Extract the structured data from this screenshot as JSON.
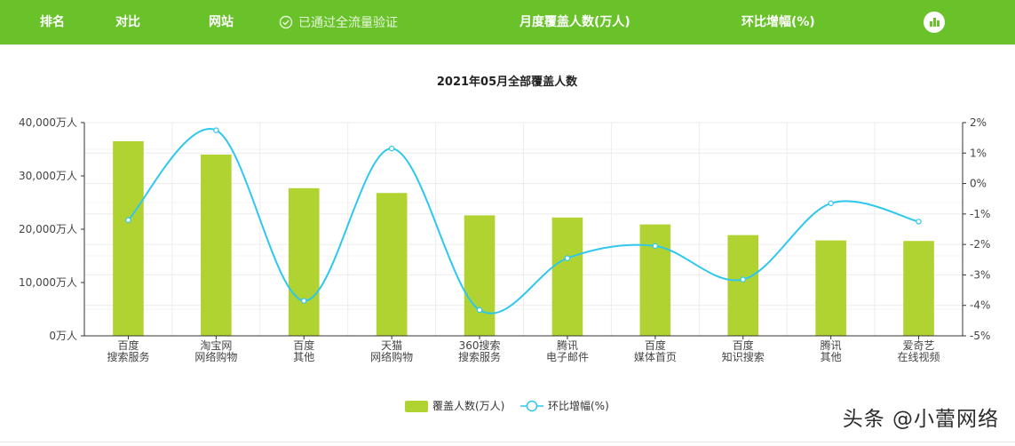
{
  "header": {
    "rank_label": "排名",
    "compare_label": "对比",
    "site_label": "网站",
    "verified_label": "已通过全流量验证",
    "coverage_label": "月度覆盖人数(万人)",
    "mom_label": "环比增幅(%)",
    "chart_toggle_icon": "bar-chart-icon"
  },
  "colors": {
    "header_bg": "#69c22a",
    "bar": "#b1d332",
    "line": "#2ec7ed"
  },
  "chart_data": {
    "type": "bar",
    "title": "2021年05月全部覆盖人数",
    "categories": [
      [
        "百度",
        "搜索服务"
      ],
      [
        "淘宝网",
        "网络购物"
      ],
      [
        "百度",
        "其他"
      ],
      [
        "天猫",
        "网络购物"
      ],
      [
        "360搜索",
        "搜索服务"
      ],
      [
        "腾讯",
        "电子邮件"
      ],
      [
        "百度",
        "媒体首页"
      ],
      [
        "百度",
        "知识搜索"
      ],
      [
        "腾讯",
        "其他"
      ],
      [
        "爱奇艺",
        "在线视频"
      ]
    ],
    "series": [
      {
        "name": "覆盖人数(万人)",
        "type": "bar",
        "axis": "left",
        "values": [
          36500,
          34000,
          27700,
          26800,
          22600,
          22200,
          20900,
          18900,
          17900,
          17800
        ]
      },
      {
        "name": "环比增幅(%)",
        "type": "line",
        "axis": "right",
        "values": [
          -1.2,
          1.75,
          -3.85,
          1.15,
          -4.15,
          -2.45,
          -2.05,
          -3.15,
          -0.65,
          -1.25
        ]
      }
    ],
    "y_left": {
      "min": 0,
      "max": 40000,
      "ticks": [
        "0万人",
        "10,000万人",
        "20,000万人",
        "30,000万人",
        "40,000万人"
      ]
    },
    "y_right": {
      "min": -5,
      "max": 2,
      "ticks": [
        "-5%",
        "-4%",
        "-3%",
        "-2%",
        "-1%",
        "0%",
        "1%",
        "2%"
      ]
    },
    "grid": true,
    "legend_position": "bottom-center"
  },
  "watermark": "头条 @小蕾网络"
}
